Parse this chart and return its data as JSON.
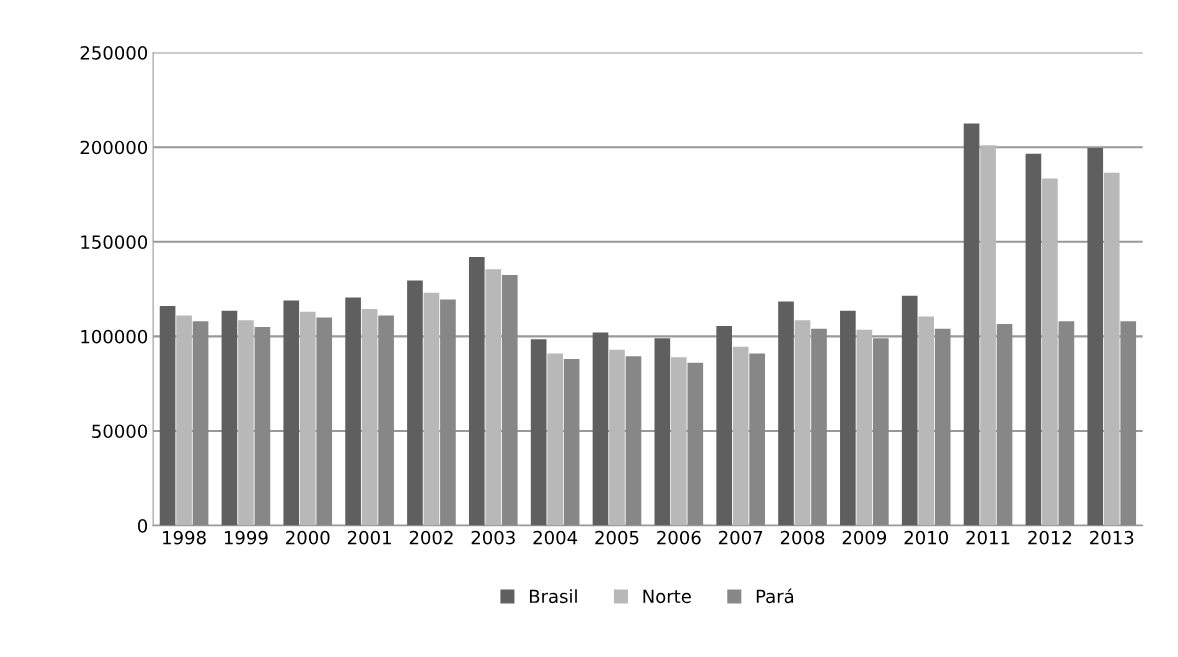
{
  "chart_data": {
    "type": "bar",
    "categories": [
      "1998",
      "1999",
      "2000",
      "2001",
      "2002",
      "2003",
      "2004",
      "2005",
      "2006",
      "2007",
      "2008",
      "2009",
      "2010",
      "2011",
      "2012",
      "2013"
    ],
    "series": [
      {
        "name": "Brasil",
        "color": "#5f5f5f",
        "values": [
          116000,
          113500,
          119000,
          120500,
          129500,
          142000,
          98500,
          102000,
          99000,
          105500,
          118500,
          113500,
          121500,
          212500,
          196500,
          199500
        ]
      },
      {
        "name": "Norte",
        "color": "#b8b8b8",
        "values": [
          111000,
          108500,
          113000,
          114500,
          123000,
          135500,
          91000,
          93000,
          89000,
          94500,
          108500,
          103500,
          110500,
          201000,
          183500,
          186500
        ]
      },
      {
        "name": "Pará",
        "color": "#878787",
        "values": [
          108000,
          105000,
          110000,
          111000,
          119500,
          132500,
          88000,
          89500,
          86000,
          91000,
          104000,
          99000,
          104000,
          106500,
          108000,
          108000
        ]
      }
    ],
    "ylim": [
      0,
      250000
    ],
    "yticks": [
      0,
      50000,
      100000,
      150000,
      200000,
      250000
    ],
    "grid": "y",
    "legend": "bottom"
  }
}
